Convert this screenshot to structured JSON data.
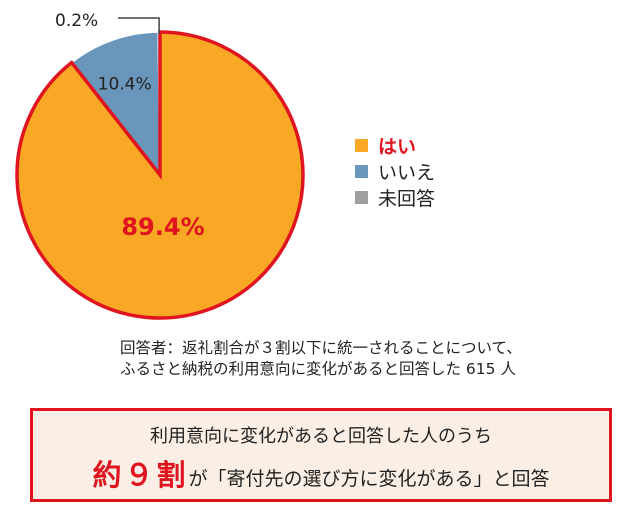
{
  "chart_data": {
    "type": "pie",
    "slices": [
      {
        "label": "はい",
        "value": 89.4,
        "value_label": "89.4%",
        "color": "#f8a824"
      },
      {
        "label": "いいえ",
        "value": 10.4,
        "value_label": "10.4%",
        "color": "#6a96bc"
      },
      {
        "label": "未回答",
        "value": 0.2,
        "value_label": "0.2%",
        "color": "#a0a0a0"
      }
    ],
    "highlight_border_color": "#e0141e",
    "legend_position": "right"
  },
  "note": {
    "line1": "回答者：返礼割合が３割以下に統一されることについて、",
    "line2": "ふるさと納税の利用意向に変化があると回答した 615 人"
  },
  "summary": {
    "line1": "利用意向に変化があると回答した人のうち",
    "emphasis": "約９割",
    "rest": "が「寄付先の選び方に変化がある」と回答"
  }
}
